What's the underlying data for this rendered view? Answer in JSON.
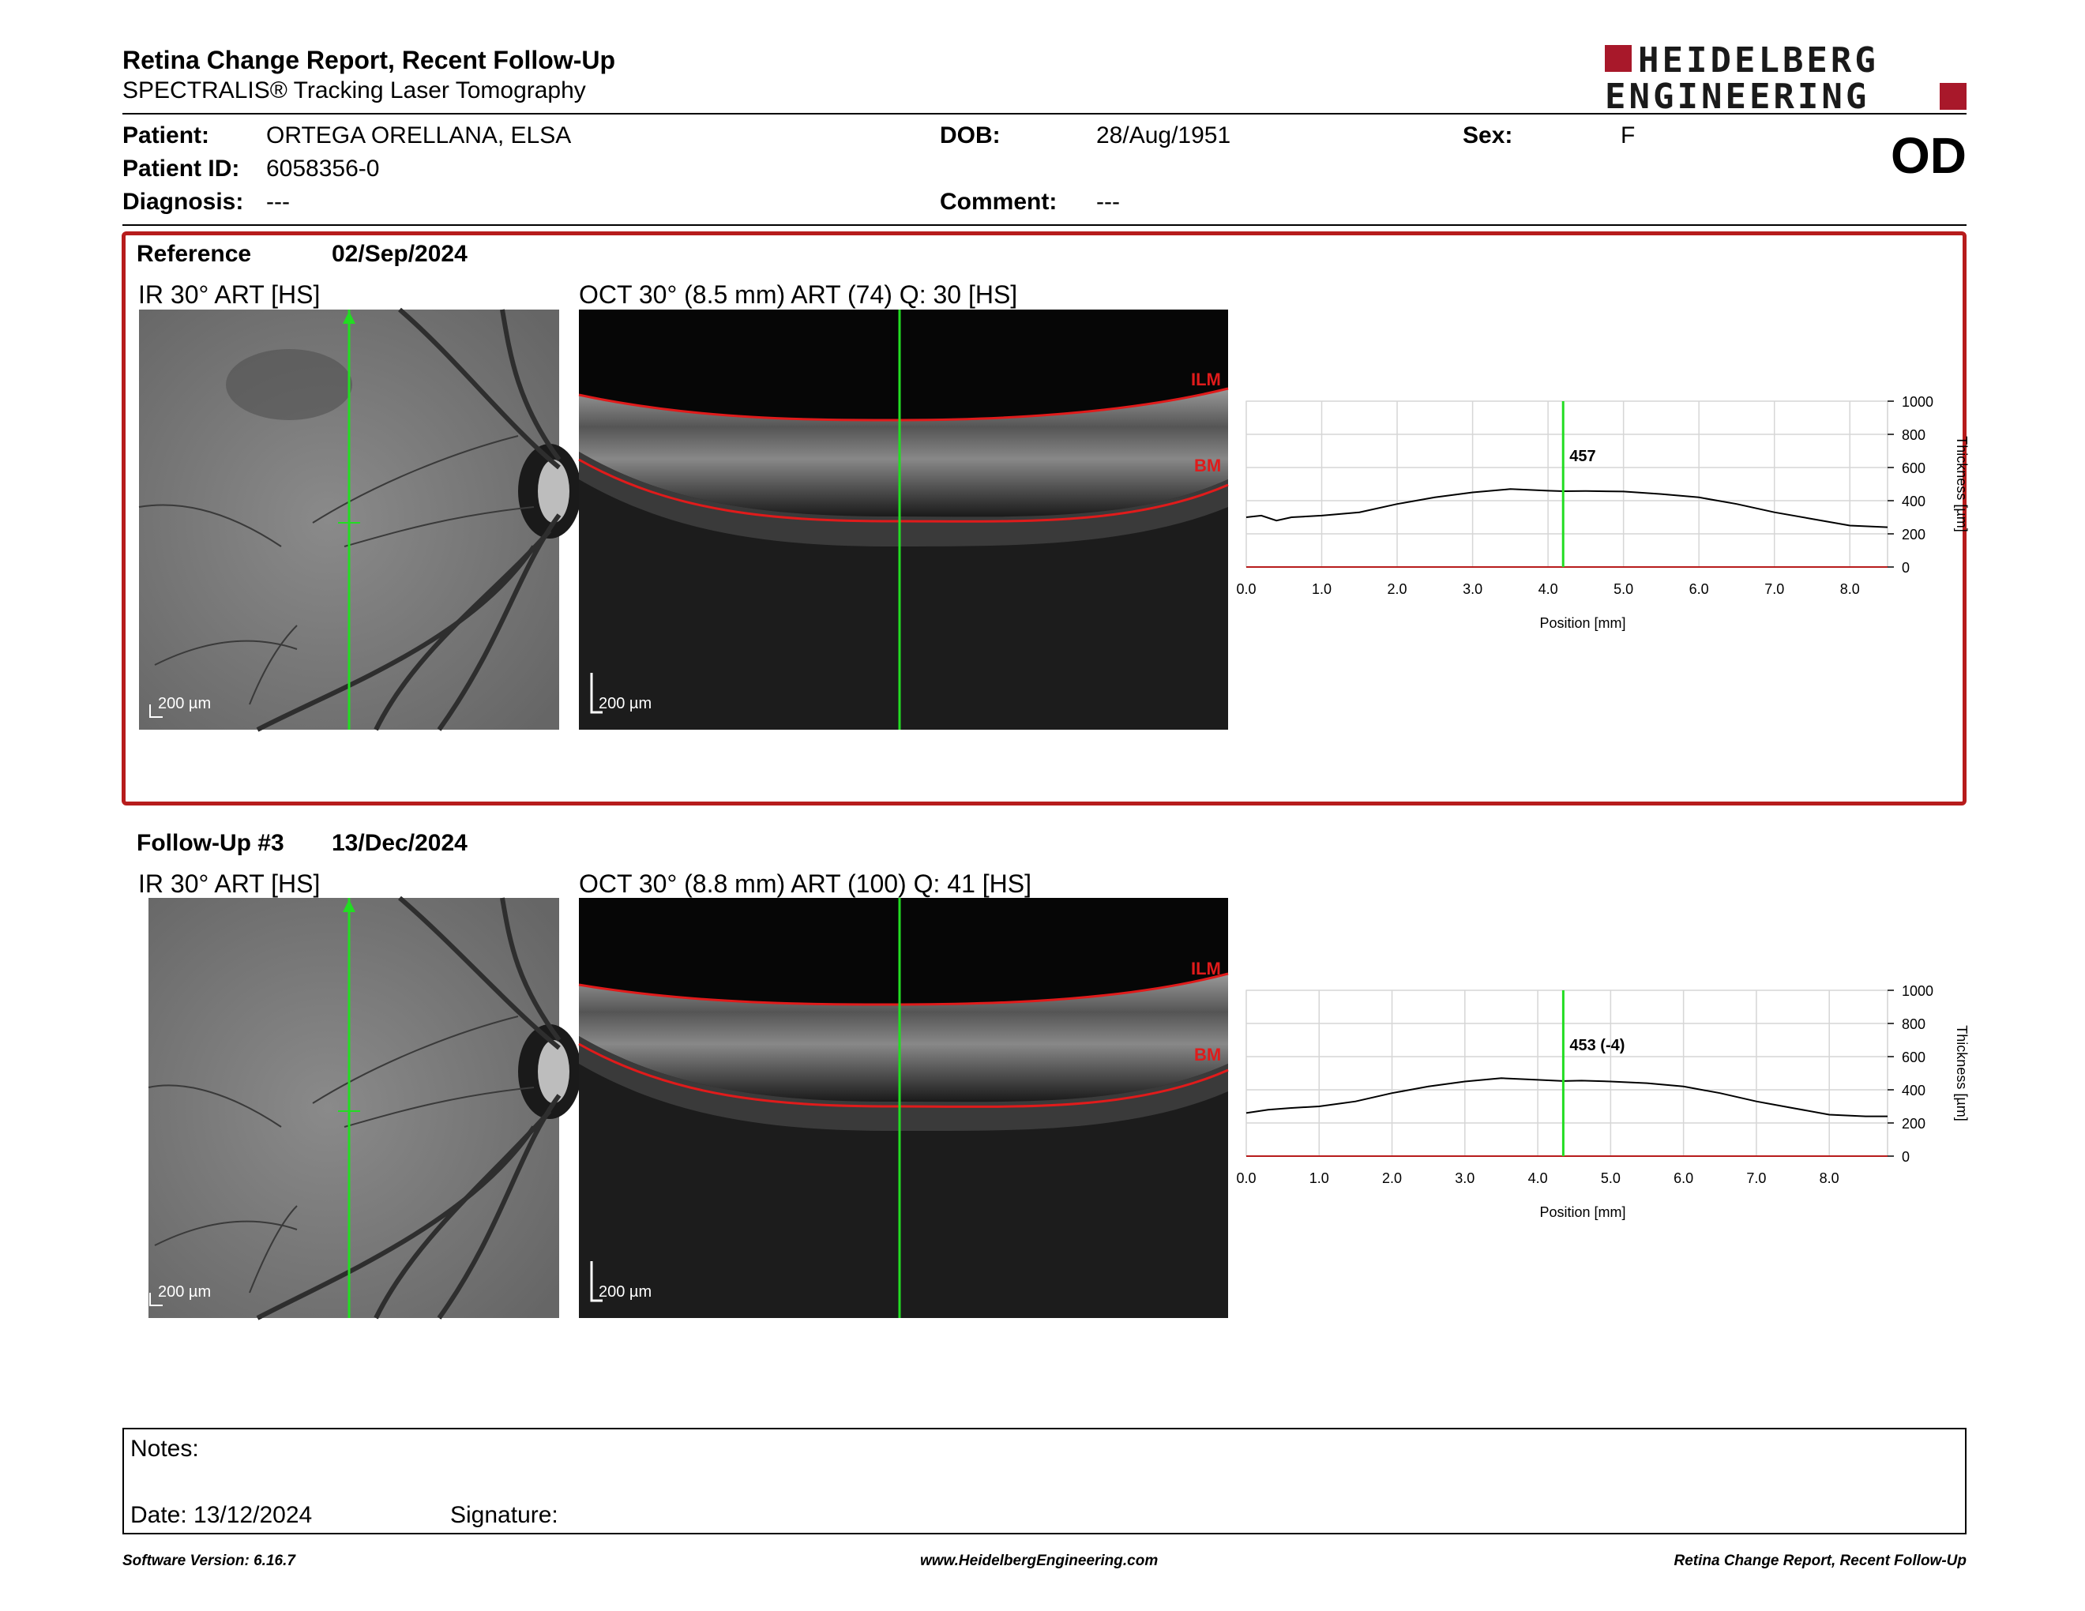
{
  "header": {
    "title": "Retina Change Report, Recent Follow-Up",
    "subtitle": "SPECTRALIS® Tracking Laser Tomography",
    "logo_line1": "HEIDELBERG",
    "logo_line2": "ENGINEERING",
    "eye": "OD"
  },
  "patient": {
    "patient_label": "Patient:",
    "patient_value": "ORTEGA ORELLANA, ELSA",
    "id_label": "Patient ID:",
    "id_value": "6058356-0",
    "diagnosis_label": "Diagnosis:",
    "diagnosis_value": "---",
    "dob_label": "DOB:",
    "dob_value": "28/Aug/1951",
    "comment_label": "Comment:",
    "comment_value": "---",
    "sex_label": "Sex:",
    "sex_value": "F"
  },
  "reference": {
    "label": "Reference",
    "date": "02/Sep/2024",
    "ir_title": "IR 30° ART [HS]",
    "oct_title": "OCT 30° (8.5 mm) ART (74) Q: 30 [HS]",
    "scalebar": "200 µm",
    "ilm": "ILM",
    "bm": "BM"
  },
  "followup": {
    "label": "Follow-Up #3",
    "date": "13/Dec/2024",
    "ir_title": "IR 30° ART [HS]",
    "oct_title": "OCT 30° (8.8 mm) ART (100) Q: 41 [HS]",
    "scalebar": "200 µm",
    "ilm": "ILM",
    "bm": "BM"
  },
  "chart_data": [
    {
      "type": "line",
      "xlabel": "Position [mm]",
      "ylabel": "Thickness [µm]",
      "xlim": [
        0,
        8.5
      ],
      "ylim": [
        0,
        1000
      ],
      "xticks": [
        "0.0",
        "1.0",
        "2.0",
        "3.0",
        "4.0",
        "5.0",
        "6.0",
        "7.0",
        "8.0"
      ],
      "yticks": [
        "0",
        "200",
        "400",
        "600",
        "800",
        "1000"
      ],
      "marker_x": 4.2,
      "marker_label": "457",
      "series": [
        {
          "x": [
            0.0,
            0.2,
            0.4,
            0.6,
            1.0,
            1.5,
            2.0,
            2.5,
            3.0,
            3.5,
            4.0,
            4.2,
            4.5,
            5.0,
            5.5,
            6.0,
            6.5,
            7.0,
            7.5,
            8.0,
            8.5
          ],
          "values": [
            300,
            310,
            280,
            300,
            310,
            330,
            380,
            420,
            450,
            470,
            460,
            457,
            458,
            455,
            440,
            420,
            380,
            330,
            290,
            250,
            240
          ]
        }
      ]
    },
    {
      "type": "line",
      "xlabel": "Position [mm]",
      "ylabel": "Thickness [µm]",
      "xlim": [
        0,
        8.8
      ],
      "ylim": [
        0,
        1000
      ],
      "xticks": [
        "0.0",
        "1.0",
        "2.0",
        "3.0",
        "4.0",
        "5.0",
        "6.0",
        "7.0",
        "8.0"
      ],
      "yticks": [
        "0",
        "200",
        "400",
        "600",
        "800",
        "1000"
      ],
      "marker_x": 4.35,
      "marker_label": "453 (-4)",
      "series": [
        {
          "x": [
            0.0,
            0.3,
            0.6,
            1.0,
            1.5,
            2.0,
            2.5,
            3.0,
            3.5,
            4.0,
            4.35,
            4.6,
            5.0,
            5.5,
            6.0,
            6.5,
            7.0,
            7.5,
            8.0,
            8.5,
            8.8
          ],
          "values": [
            260,
            280,
            290,
            300,
            330,
            380,
            420,
            450,
            470,
            460,
            453,
            455,
            450,
            440,
            420,
            380,
            330,
            290,
            250,
            240,
            240
          ]
        }
      ]
    }
  ],
  "notes": {
    "notes_label": "Notes:",
    "date_label": "Date: 13/12/2024",
    "signature_label": "Signature:"
  },
  "footer": {
    "version": "Software Version: 6.16.7",
    "website": "www.HeidelbergEngineering.com",
    "report": "Retina Change Report, Recent Follow-Up"
  }
}
